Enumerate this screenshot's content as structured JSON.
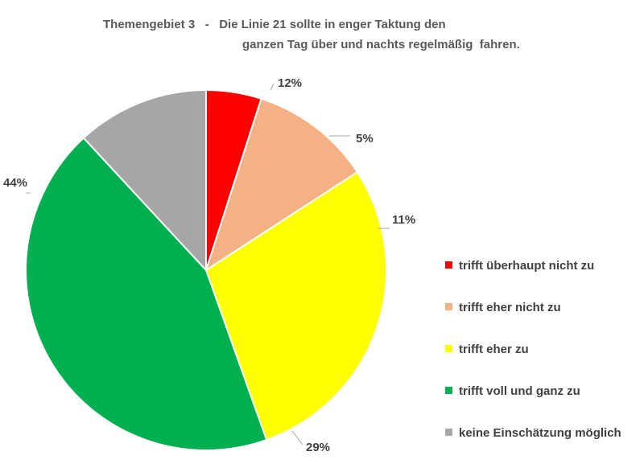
{
  "chart_data": {
    "type": "pie",
    "title_lines": [
      "Themengebiet 3   -   Die Linie 21 sollte in enger Taktung den",
      "ganzen Tag über und nachts regelmäßig  fahren."
    ],
    "start_angle_deg": 0,
    "direction": "clockwise",
    "legend_position": "right",
    "slices": [
      {
        "label": "trifft überhaupt nicht zu",
        "value": 5,
        "display": "5%",
        "color": "#FF0000"
      },
      {
        "label": "trifft eher nicht zu",
        "value": 11,
        "display": "11%",
        "color": "#F4B183"
      },
      {
        "label": "trifft eher zu",
        "value": 29,
        "display": "29%",
        "color": "#FFFF00"
      },
      {
        "label": "trifft voll und ganz zu",
        "value": 44,
        "display": "44%",
        "color": "#00B050"
      },
      {
        "label": "keine Einschätzung möglich",
        "value": 12,
        "display": "12%",
        "color": "#A6A6A6"
      }
    ]
  }
}
